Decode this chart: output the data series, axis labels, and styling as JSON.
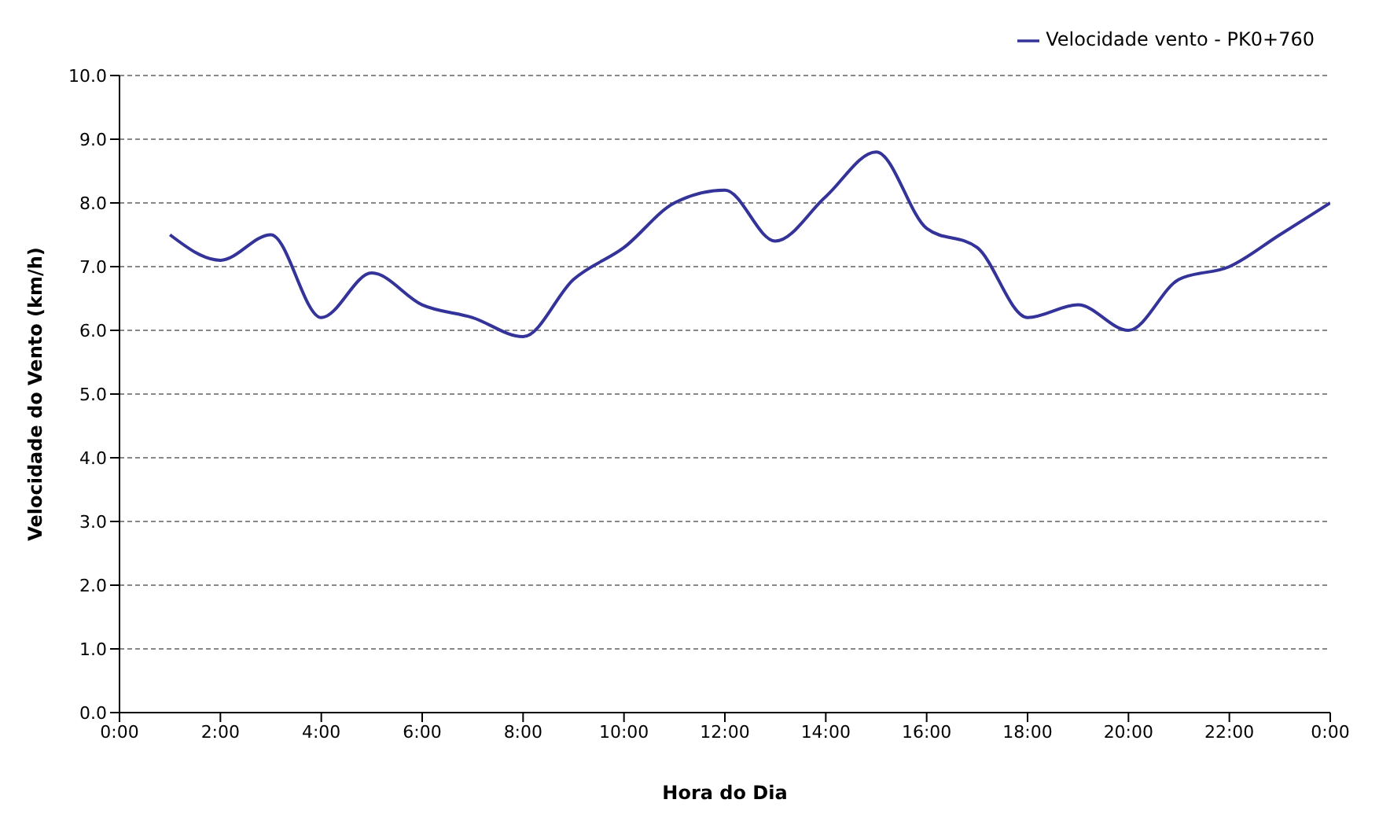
{
  "chart_data": {
    "type": "line",
    "xlabel": "Hora do Dia",
    "ylabel": "Velocidade do Vento (km/h)",
    "x": [
      1,
      2,
      3,
      4,
      5,
      6,
      7,
      8,
      9,
      10,
      11,
      12,
      13,
      14,
      15,
      16,
      17,
      18,
      19,
      20,
      21,
      22,
      23,
      24
    ],
    "series": [
      {
        "name": "Velocidade vento  - PK0+760",
        "color": "#33339a",
        "values": [
          7.5,
          7.1,
          7.5,
          6.2,
          6.9,
          6.4,
          6.2,
          5.9,
          6.8,
          7.3,
          8.0,
          8.2,
          7.4,
          8.1,
          8.8,
          7.6,
          7.3,
          6.2,
          6.4,
          6.0,
          6.8,
          7.0,
          7.5,
          8.0
        ]
      }
    ],
    "xlim": [
      0,
      24
    ],
    "xticks": [
      {
        "value": 0,
        "label": "0:00"
      },
      {
        "value": 2,
        "label": "2:00"
      },
      {
        "value": 4,
        "label": "4:00"
      },
      {
        "value": 6,
        "label": "6:00"
      },
      {
        "value": 8,
        "label": "8:00"
      },
      {
        "value": 10,
        "label": "10:00"
      },
      {
        "value": 12,
        "label": "12:00"
      },
      {
        "value": 14,
        "label": "14:00"
      },
      {
        "value": 16,
        "label": "16:00"
      },
      {
        "value": 18,
        "label": "18:00"
      },
      {
        "value": 20,
        "label": "20:00"
      },
      {
        "value": 22,
        "label": "22:00"
      },
      {
        "value": 24,
        "label": "0:00"
      }
    ],
    "ylim": [
      0,
      10
    ],
    "yticks": [
      {
        "value": 0,
        "label": "0.0"
      },
      {
        "value": 1,
        "label": "1.0"
      },
      {
        "value": 2,
        "label": "2.0"
      },
      {
        "value": 3,
        "label": "3.0"
      },
      {
        "value": 4,
        "label": "4.0"
      },
      {
        "value": 5,
        "label": "5.0"
      },
      {
        "value": 6,
        "label": "6.0"
      },
      {
        "value": 7,
        "label": "7.0"
      },
      {
        "value": 8,
        "label": "8.0"
      },
      {
        "value": 9,
        "label": "9.0"
      },
      {
        "value": 10,
        "label": "10.0"
      }
    ],
    "grid": "y",
    "legend": "top right",
    "marker": "none",
    "line_style": "solid"
  }
}
